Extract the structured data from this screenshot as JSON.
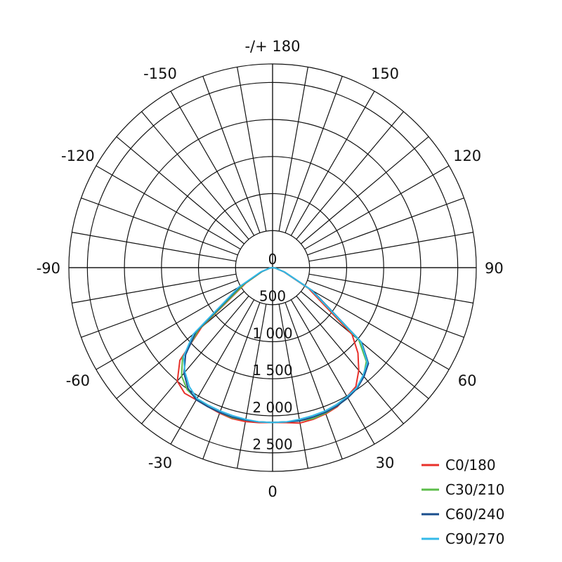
{
  "chart_data": {
    "type": "polar",
    "angle_labels": [
      {
        "angle": 180,
        "text": "-/+ 180"
      },
      {
        "angle": 150,
        "text": "150"
      },
      {
        "angle": -150,
        "text": "-150"
      },
      {
        "angle": 120,
        "text": "120"
      },
      {
        "angle": -120,
        "text": "-120"
      },
      {
        "angle": 90,
        "text": "90"
      },
      {
        "angle": -90,
        "text": "-90"
      },
      {
        "angle": 60,
        "text": "60"
      },
      {
        "angle": -60,
        "text": "-60"
      },
      {
        "angle": 30,
        "text": "30"
      },
      {
        "angle": -30,
        "text": "-30"
      },
      {
        "angle": 0,
        "text": "0"
      }
    ],
    "radial_ticks": [
      {
        "value": 0,
        "text": "0"
      },
      {
        "value": 500,
        "text": "500"
      },
      {
        "value": 1000,
        "text": "1 000"
      },
      {
        "value": 1500,
        "text": "1 500"
      },
      {
        "value": 2000,
        "text": "2 000"
      },
      {
        "value": 2500,
        "text": "2 500"
      }
    ],
    "rlim": [
      0,
      2750
    ],
    "angle_step_degrees": 10,
    "zero_direction": "down",
    "legend_position": "bottom-right",
    "series": [
      {
        "name": "C0/180",
        "color": "#e8302a",
        "angles": [
          -90,
          -80,
          -70,
          -60,
          -50,
          -45,
          -40,
          -35,
          -30,
          -25,
          -20,
          -15,
          -10,
          -5,
          0,
          5,
          10,
          15,
          20,
          25,
          30,
          35,
          40,
          45,
          50,
          60,
          70,
          80,
          90
        ],
        "values": [
          0,
          40,
          150,
          420,
          1250,
          1770,
          2000,
          2070,
          2060,
          2070,
          2090,
          2110,
          2110,
          2100,
          2090,
          2100,
          2130,
          2120,
          2100,
          2070,
          2010,
          1960,
          1810,
          1630,
          1400,
          560,
          160,
          40,
          0
        ]
      },
      {
        "name": "C30/210",
        "color": "#5cbd4a",
        "angles": [
          -90,
          -80,
          -70,
          -60,
          -50,
          -45,
          -40,
          -35,
          -30,
          -25,
          -20,
          -15,
          -10,
          -5,
          0,
          5,
          10,
          15,
          20,
          25,
          30,
          35,
          40,
          45,
          50,
          60,
          70,
          80,
          90
        ],
        "values": [
          0,
          40,
          150,
          440,
          1300,
          1720,
          1910,
          2010,
          2050,
          2070,
          2080,
          2100,
          2090,
          2090,
          2090,
          2090,
          2100,
          2110,
          2090,
          2060,
          2030,
          1990,
          1910,
          1790,
          1520,
          600,
          170,
          40,
          0
        ]
      },
      {
        "name": "C60/240",
        "color": "#1a4e8c",
        "angles": [
          -90,
          -80,
          -70,
          -60,
          -50,
          -45,
          -40,
          -35,
          -30,
          -25,
          -20,
          -15,
          -10,
          -5,
          0,
          5,
          10,
          15,
          20,
          25,
          30,
          35,
          40,
          45,
          50,
          60,
          70,
          80,
          90
        ],
        "values": [
          0,
          40,
          160,
          500,
          1350,
          1660,
          1860,
          1990,
          2060,
          2070,
          2080,
          2090,
          2090,
          2090,
          2090,
          2090,
          2100,
          2090,
          2080,
          2060,
          2030,
          1990,
          1920,
          1830,
          1570,
          620,
          170,
          40,
          0
        ]
      },
      {
        "name": "C90/270",
        "color": "#33b9e8",
        "angles": [
          -90,
          -80,
          -70,
          -60,
          -50,
          -45,
          -40,
          -35,
          -30,
          -25,
          -20,
          -15,
          -10,
          -5,
          0,
          5,
          10,
          15,
          20,
          25,
          30,
          35,
          40,
          45,
          50,
          60,
          70,
          80,
          90
        ],
        "values": [
          0,
          40,
          170,
          530,
          1400,
          1700,
          1840,
          1960,
          2040,
          2050,
          2060,
          2070,
          2080,
          2090,
          2090,
          2090,
          2080,
          2070,
          2060,
          2040,
          2010,
          1980,
          1900,
          1810,
          1560,
          600,
          170,
          40,
          0
        ]
      }
    ]
  }
}
